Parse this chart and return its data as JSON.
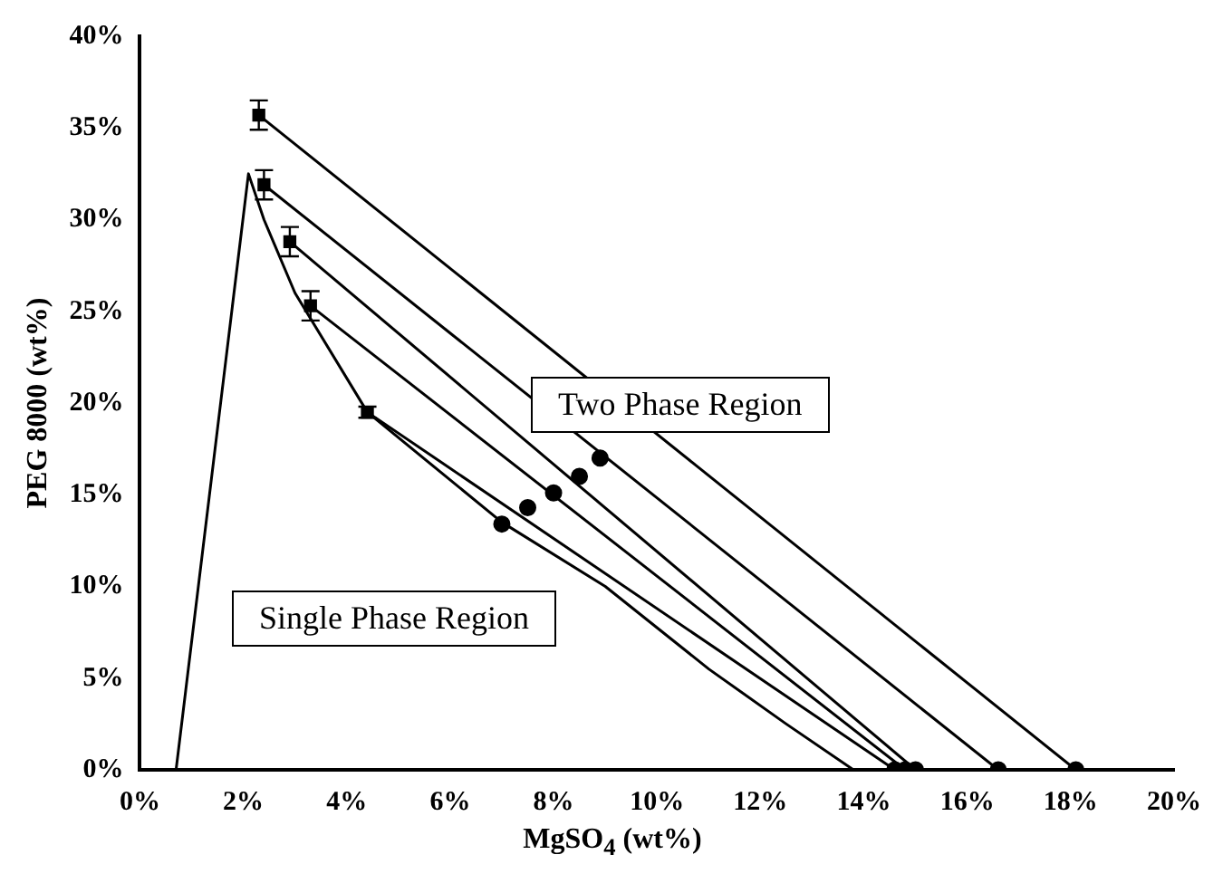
{
  "chart_data": {
    "type": "line",
    "xlabel": "MgSO$_{4}$ (wt%)",
    "ylabel": "PEG 8000 (wt%)",
    "xlim": [
      0,
      20
    ],
    "ylim": [
      0,
      40
    ],
    "xticks": [
      {
        "value": 0,
        "label": "0%"
      },
      {
        "value": 2,
        "label": "2%"
      },
      {
        "value": 4,
        "label": "4%"
      },
      {
        "value": 6,
        "label": "6%"
      },
      {
        "value": 8,
        "label": "8%"
      },
      {
        "value": 10,
        "label": "10%"
      },
      {
        "value": 12,
        "label": "12%"
      },
      {
        "value": 14,
        "label": "14%"
      },
      {
        "value": 16,
        "label": "16%"
      },
      {
        "value": 18,
        "label": "18%"
      },
      {
        "value": 20,
        "label": "20%"
      }
    ],
    "yticks": [
      {
        "value": 0,
        "label": "0%"
      },
      {
        "value": 5,
        "label": "5%"
      },
      {
        "value": 10,
        "label": "10%"
      },
      {
        "value": 15,
        "label": "15%"
      },
      {
        "value": 20,
        "label": "20%"
      },
      {
        "value": 25,
        "label": "25%"
      },
      {
        "value": 30,
        "label": "30%"
      },
      {
        "value": 35,
        "label": "35%"
      },
      {
        "value": 40,
        "label": "40%"
      }
    ],
    "grid": false,
    "legend": false,
    "line_style": "solid",
    "annotations": [
      "Two Phase Region",
      "Single Phase Region"
    ],
    "series": [
      {
        "color": "#000000",
        "x": [
          0.7,
          2.1,
          2.4,
          3.0,
          4.4,
          7.0,
          9.0,
          11.0,
          12.5,
          13.8
        ],
        "values": [
          0,
          32.5,
          30,
          26,
          19.5,
          13.5,
          10,
          5.5,
          2.5,
          0
        ]
      },
      {
        "color": "#000000",
        "x": [
          2.3,
          18.1
        ],
        "values": [
          35.7,
          0
        ]
      },
      {
        "color": "#000000",
        "x": [
          2.4,
          16.6
        ],
        "values": [
          31.9,
          0
        ]
      },
      {
        "color": "#000000",
        "x": [
          2.9,
          15.0
        ],
        "values": [
          28.8,
          0
        ]
      },
      {
        "color": "#000000",
        "x": [
          3.3,
          14.8
        ],
        "values": [
          25.3,
          0
        ]
      },
      {
        "color": "#000000",
        "x": [
          4.4,
          14.6
        ],
        "values": [
          19.5,
          0
        ]
      },
      {
        "type": "scatter",
        "marker": "square",
        "color": "#000000",
        "x": [
          2.3,
          2.4,
          2.9,
          3.3,
          4.4
        ],
        "values": [
          35.7,
          31.9,
          28.8,
          25.3,
          19.5
        ],
        "errors": [
          0.8,
          0.8,
          0.8,
          0.8,
          0.3
        ]
      },
      {
        "type": "scatter",
        "marker": "circle",
        "color": "#000000",
        "x": [
          7.0,
          7.5,
          8.0,
          8.5,
          8.9
        ],
        "values": [
          13.4,
          14.3,
          15.1,
          16.0,
          17.0
        ]
      },
      {
        "type": "scatter",
        "marker": "circle",
        "color": "#000000",
        "x": [
          14.6,
          14.8,
          15.0,
          16.6,
          18.1
        ],
        "values": [
          0,
          0,
          0,
          0,
          0
        ]
      }
    ]
  }
}
